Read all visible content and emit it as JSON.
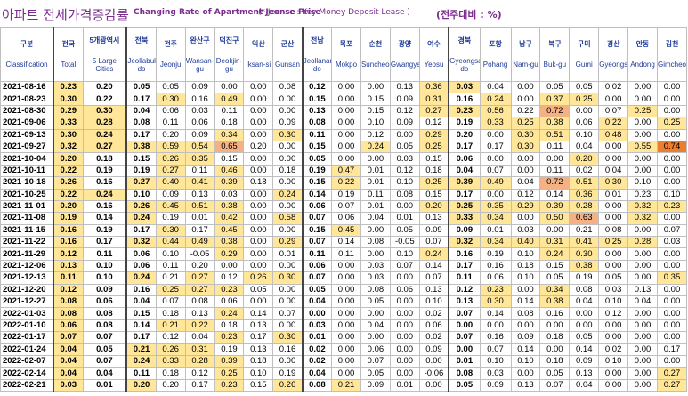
{
  "title": {
    "korean": "아파트 전세가격증감률",
    "english": "Changing Rate of Apartment Jeonse Price",
    "note": "(* Jeonse : Key Money Deposit Lease )",
    "ratio": "(전주대비 : %)"
  },
  "columns": [
    {
      "ko": "구분",
      "en": "Classification"
    },
    {
      "ko": "전국",
      "en": "Total"
    },
    {
      "ko": "5개광역시",
      "en": "5 Large Cities"
    },
    {
      "ko": "전북",
      "en": "Jeollabuk-do"
    },
    {
      "ko": "전주",
      "en": "Jeonju"
    },
    {
      "ko": "완산구",
      "en": "Wansan-gu"
    },
    {
      "ko": "덕진구",
      "en": "Deokjin-gu"
    },
    {
      "ko": "익산",
      "en": "Iksan-si"
    },
    {
      "ko": "군산",
      "en": "Gunsan"
    },
    {
      "ko": "전남",
      "en": "Jeollanam-do"
    },
    {
      "ko": "목포",
      "en": "Mokpo"
    },
    {
      "ko": "순천",
      "en": "Suncheon"
    },
    {
      "ko": "광양",
      "en": "Gwangyang"
    },
    {
      "ko": "여수",
      "en": "Yeosu"
    },
    {
      "ko": "경북",
      "en": "Gyeongsangbuk-do"
    },
    {
      "ko": "포항",
      "en": "Pohang"
    },
    {
      "ko": "남구",
      "en": "Nam-gu"
    },
    {
      "ko": "북구",
      "en": "Buk-gu"
    },
    {
      "ko": "구미",
      "en": "Gumi"
    },
    {
      "ko": "경산",
      "en": "Gyeongsan"
    },
    {
      "ko": "안동",
      "en": "Andong"
    },
    {
      "ko": "김천",
      "en": "Gimcheon"
    }
  ],
  "rows": [
    {
      "date": "2021-08-16",
      "v": [
        "0.23",
        "0.20",
        "0.05",
        "0.05",
        "0.09",
        "0.00",
        "0.00",
        "0.08",
        "0.12",
        "0.00",
        "0.00",
        "0.13",
        "0.36",
        "0.03",
        "0.04",
        "0.00",
        "0.05",
        "0.05",
        "0.02",
        "0.00",
        "0.00"
      ],
      "h": [
        1,
        0,
        0,
        0,
        0,
        0,
        0,
        0,
        0,
        0,
        0,
        0,
        1,
        1,
        0,
        0,
        0,
        0,
        0,
        0,
        0
      ]
    },
    {
      "date": "2021-08-23",
      "v": [
        "0.30",
        "0.22",
        "0.17",
        "0.30",
        "0.16",
        "0.49",
        "0.00",
        "0.00",
        "0.15",
        "0.00",
        "0.15",
        "0.09",
        "0.31",
        "0.16",
        "0.24",
        "0.00",
        "0.37",
        "0.25",
        "0.00",
        "0.00",
        "0.00"
      ],
      "h": [
        1,
        0,
        0,
        1,
        0,
        1,
        0,
        0,
        0,
        0,
        0,
        0,
        1,
        0,
        1,
        0,
        1,
        1,
        0,
        0,
        0
      ]
    },
    {
      "date": "2021-08-30",
      "v": [
        "0.29",
        "0.30",
        "0.04",
        "0.06",
        "0.03",
        "0.11",
        "0.00",
        "0.00",
        "0.13",
        "0.00",
        "0.15",
        "0.12",
        "0.27",
        "0.23",
        "0.56",
        "0.22",
        "0.72",
        "0.00",
        "0.07",
        "0.25",
        "0.00"
      ],
      "h": [
        1,
        1,
        0,
        0,
        0,
        0,
        0,
        0,
        0,
        0,
        0,
        0,
        1,
        1,
        1,
        0,
        2,
        0,
        0,
        1,
        0
      ]
    },
    {
      "date": "2021-09-06",
      "v": [
        "0.33",
        "0.28",
        "0.08",
        "0.11",
        "0.06",
        "0.18",
        "0.00",
        "0.09",
        "0.08",
        "0.00",
        "0.10",
        "0.09",
        "0.12",
        "0.19",
        "0.33",
        "0.25",
        "0.38",
        "0.06",
        "0.22",
        "0.00",
        "0.25"
      ],
      "h": [
        1,
        1,
        0,
        0,
        0,
        0,
        0,
        0,
        0,
        0,
        0,
        0,
        0,
        0,
        1,
        1,
        1,
        0,
        1,
        0,
        1
      ]
    },
    {
      "date": "2021-09-13",
      "v": [
        "0.30",
        "0.24",
        "0.17",
        "0.20",
        "0.09",
        "0.34",
        "0.00",
        "0.30",
        "0.11",
        "0.00",
        "0.12",
        "0.00",
        "0.29",
        "0.20",
        "0.00",
        "0.30",
        "0.51",
        "0.10",
        "0.48",
        "0.00",
        "0.00"
      ],
      "h": [
        1,
        1,
        0,
        0,
        0,
        1,
        0,
        1,
        0,
        0,
        0,
        0,
        1,
        0,
        0,
        1,
        1,
        0,
        1,
        0,
        0
      ]
    },
    {
      "date": "2021-09-27",
      "v": [
        "0.32",
        "0.27",
        "0.38",
        "0.59",
        "0.54",
        "0.65",
        "0.20",
        "0.00",
        "0.15",
        "0.00",
        "0.24",
        "0.05",
        "0.25",
        "0.17",
        "0.17",
        "0.30",
        "0.11",
        "0.04",
        "0.00",
        "0.55",
        "0.74"
      ],
      "h": [
        1,
        1,
        1,
        1,
        1,
        2,
        0,
        0,
        0,
        0,
        1,
        0,
        1,
        0,
        0,
        1,
        0,
        0,
        0,
        1,
        3
      ]
    },
    {
      "date": "2021-10-04",
      "v": [
        "0.20",
        "0.18",
        "0.15",
        "0.26",
        "0.35",
        "0.15",
        "0.00",
        "0.00",
        "0.05",
        "0.00",
        "0.00",
        "0.03",
        "0.15",
        "0.06",
        "0.00",
        "0.00",
        "0.00",
        "0.20",
        "0.00",
        "0.00",
        "0.00"
      ],
      "h": [
        1,
        0,
        0,
        1,
        1,
        0,
        0,
        0,
        0,
        0,
        0,
        0,
        0,
        0,
        0,
        0,
        0,
        1,
        0,
        0,
        0
      ]
    },
    {
      "date": "2021-10-11",
      "v": [
        "0.22",
        "0.19",
        "0.19",
        "0.27",
        "0.11",
        "0.46",
        "0.00",
        "0.18",
        "0.19",
        "0.47",
        "0.01",
        "0.12",
        "0.18",
        "0.04",
        "0.07",
        "0.00",
        "0.11",
        "0.02",
        "0.04",
        "0.00",
        "0.00"
      ],
      "h": [
        1,
        0,
        0,
        1,
        0,
        1,
        0,
        0,
        0,
        1,
        0,
        0,
        0,
        0,
        0,
        0,
        0,
        0,
        0,
        0,
        0
      ]
    },
    {
      "date": "2021-10-18",
      "v": [
        "0.26",
        "0.16",
        "0.27",
        "0.40",
        "0.41",
        "0.39",
        "0.18",
        "0.00",
        "0.15",
        "0.22",
        "0.01",
        "0.10",
        "0.25",
        "0.39",
        "0.49",
        "0.04",
        "0.72",
        "0.51",
        "0.30",
        "0.10",
        "0.00"
      ],
      "h": [
        1,
        0,
        1,
        1,
        1,
        1,
        0,
        0,
        0,
        1,
        0,
        0,
        1,
        1,
        1,
        0,
        2,
        1,
        1,
        0,
        0
      ]
    },
    {
      "date": "2021-10-25",
      "v": [
        "0.22",
        "0.24",
        "0.10",
        "0.09",
        "0.13",
        "0.03",
        "0.00",
        "0.24",
        "0.14",
        "0.19",
        "0.11",
        "0.08",
        "0.15",
        "0.17",
        "0.00",
        "0.12",
        "0.14",
        "0.36",
        "0.01",
        "0.23",
        "0.10"
      ],
      "h": [
        1,
        1,
        0,
        0,
        0,
        0,
        0,
        1,
        0,
        0,
        0,
        0,
        0,
        0,
        0,
        0,
        0,
        1,
        0,
        0,
        0
      ]
    },
    {
      "date": "2021-11-01",
      "v": [
        "0.20",
        "0.16",
        "0.26",
        "0.45",
        "0.51",
        "0.38",
        "0.00",
        "0.00",
        "0.06",
        "0.07",
        "0.01",
        "0.00",
        "0.20",
        "0.25",
        "0.35",
        "0.29",
        "0.39",
        "0.28",
        "0.00",
        "0.32",
        "0.23"
      ],
      "h": [
        1,
        0,
        1,
        1,
        1,
        1,
        0,
        0,
        0,
        0,
        0,
        0,
        1,
        1,
        1,
        1,
        1,
        1,
        0,
        1,
        1
      ]
    },
    {
      "date": "2021-11-08",
      "v": [
        "0.19",
        "0.14",
        "0.24",
        "0.19",
        "0.01",
        "0.42",
        "0.00",
        "0.58",
        "0.07",
        "0.06",
        "0.04",
        "0.01",
        "0.13",
        "0.33",
        "0.34",
        "0.00",
        "0.50",
        "0.63",
        "0.00",
        "0.32",
        "0.00"
      ],
      "h": [
        1,
        0,
        1,
        0,
        0,
        1,
        0,
        1,
        0,
        0,
        0,
        0,
        0,
        1,
        1,
        0,
        1,
        2,
        0,
        1,
        0
      ]
    },
    {
      "date": "2021-11-15",
      "v": [
        "0.16",
        "0.19",
        "0.17",
        "0.30",
        "0.17",
        "0.45",
        "0.00",
        "0.00",
        "0.15",
        "0.45",
        "0.00",
        "0.05",
        "0.09",
        "0.09",
        "0.01",
        "0.03",
        "0.00",
        "0.21",
        "0.08",
        "0.00",
        "0.07"
      ],
      "h": [
        1,
        0,
        0,
        1,
        0,
        1,
        0,
        0,
        0,
        1,
        0,
        0,
        0,
        0,
        0,
        0,
        0,
        0,
        0,
        0,
        0
      ]
    },
    {
      "date": "2021-11-22",
      "v": [
        "0.16",
        "0.17",
        "0.32",
        "0.44",
        "0.49",
        "0.38",
        "0.00",
        "0.29",
        "0.07",
        "0.14",
        "0.08",
        "-0.05",
        "0.07",
        "0.32",
        "0.34",
        "0.40",
        "0.31",
        "0.41",
        "0.25",
        "0.28",
        "0.03"
      ],
      "h": [
        1,
        0,
        1,
        1,
        1,
        1,
        0,
        1,
        0,
        0,
        0,
        0,
        0,
        1,
        1,
        1,
        1,
        1,
        1,
        1,
        0
      ]
    },
    {
      "date": "2021-11-29",
      "v": [
        "0.12",
        "0.11",
        "0.06",
        "0.10",
        "-0.05",
        "0.29",
        "0.00",
        "0.01",
        "0.11",
        "0.11",
        "0.00",
        "0.10",
        "0.24",
        "0.16",
        "0.19",
        "0.10",
        "0.24",
        "0.30",
        "0.00",
        "0.00",
        "0.00"
      ],
      "h": [
        1,
        0,
        0,
        0,
        0,
        1,
        0,
        0,
        0,
        0,
        0,
        0,
        1,
        0,
        0,
        0,
        1,
        1,
        0,
        0,
        0
      ]
    },
    {
      "date": "2021-12-06",
      "v": [
        "0.13",
        "0.10",
        "0.06",
        "0.11",
        "0.20",
        "0.00",
        "0.00",
        "0.00",
        "0.06",
        "0.00",
        "0.03",
        "0.07",
        "0.14",
        "0.17",
        "0.16",
        "0.18",
        "0.15",
        "0.38",
        "0.00",
        "0.00",
        "0.00"
      ],
      "h": [
        1,
        0,
        0,
        0,
        0,
        0,
        0,
        0,
        0,
        0,
        0,
        0,
        0,
        0,
        0,
        0,
        0,
        1,
        0,
        0,
        0
      ]
    },
    {
      "date": "2021-12-13",
      "v": [
        "0.11",
        "0.10",
        "0.24",
        "0.21",
        "0.27",
        "0.12",
        "0.26",
        "0.30",
        "0.07",
        "0.00",
        "0.03",
        "0.00",
        "0.07",
        "0.11",
        "0.06",
        "0.10",
        "0.05",
        "0.19",
        "0.05",
        "0.00",
        "0.35"
      ],
      "h": [
        1,
        0,
        1,
        0,
        1,
        0,
        1,
        1,
        0,
        0,
        0,
        0,
        0,
        0,
        0,
        0,
        0,
        0,
        0,
        0,
        1
      ]
    },
    {
      "date": "2021-12-20",
      "v": [
        "0.12",
        "0.09",
        "0.16",
        "0.25",
        "0.27",
        "0.23",
        "0.05",
        "0.00",
        "0.05",
        "0.00",
        "0.08",
        "0.06",
        "0.13",
        "0.12",
        "0.23",
        "0.00",
        "0.34",
        "0.08",
        "0.03",
        "0.13",
        "0.00"
      ],
      "h": [
        1,
        0,
        0,
        1,
        1,
        1,
        0,
        0,
        0,
        0,
        0,
        0,
        0,
        0,
        1,
        0,
        1,
        0,
        0,
        0,
        0
      ]
    },
    {
      "date": "2021-12-27",
      "v": [
        "0.08",
        "0.06",
        "0.04",
        "0.07",
        "0.08",
        "0.06",
        "0.00",
        "0.00",
        "0.04",
        "0.00",
        "0.05",
        "0.00",
        "0.10",
        "0.13",
        "0.30",
        "0.14",
        "0.38",
        "0.04",
        "0.10",
        "0.04",
        "0.00"
      ],
      "h": [
        1,
        0,
        0,
        0,
        0,
        0,
        0,
        0,
        0,
        0,
        0,
        0,
        0,
        0,
        1,
        0,
        1,
        0,
        0,
        0,
        0
      ]
    },
    {
      "date": "2022-01-03",
      "v": [
        "0.08",
        "0.08",
        "0.15",
        "0.18",
        "0.13",
        "0.24",
        "0.14",
        "0.07",
        "0.00",
        "0.00",
        "0.00",
        "0.00",
        "0.02",
        "0.07",
        "0.14",
        "0.08",
        "0.16",
        "0.00",
        "0.12",
        "0.00",
        "0.00"
      ],
      "h": [
        1,
        0,
        0,
        0,
        0,
        1,
        0,
        0,
        0,
        0,
        0,
        0,
        0,
        0,
        0,
        0,
        0,
        0,
        0,
        0,
        0
      ]
    },
    {
      "date": "2022-01-10",
      "v": [
        "0.06",
        "0.08",
        "0.14",
        "0.21",
        "0.22",
        "0.18",
        "0.13",
        "0.00",
        "0.03",
        "0.00",
        "0.04",
        "0.00",
        "0.06",
        "0.00",
        "0.00",
        "0.00",
        "0.00",
        "0.00",
        "0.00",
        "0.00",
        "0.00"
      ],
      "h": [
        1,
        0,
        0,
        1,
        1,
        0,
        0,
        0,
        0,
        0,
        0,
        0,
        0,
        0,
        0,
        0,
        0,
        0,
        0,
        0,
        0
      ]
    },
    {
      "date": "2022-01-17",
      "v": [
        "0.07",
        "0.07",
        "0.17",
        "0.12",
        "0.04",
        "0.23",
        "0.17",
        "0.30",
        "0.01",
        "0.00",
        "0.00",
        "0.00",
        "0.02",
        "0.07",
        "0.16",
        "0.09",
        "0.18",
        "0.05",
        "0.00",
        "0.00",
        "0.00"
      ],
      "h": [
        1,
        0,
        0,
        0,
        0,
        1,
        0,
        1,
        0,
        0,
        0,
        0,
        0,
        0,
        0,
        0,
        0,
        0,
        0,
        0,
        0
      ]
    },
    {
      "date": "2022-01-24",
      "v": [
        "0.04",
        "0.05",
        "0.21",
        "0.26",
        "0.31",
        "0.19",
        "0.13",
        "0.16",
        "0.02",
        "0.00",
        "0.06",
        "0.00",
        "0.09",
        "0.00",
        "0.07",
        "0.14",
        "0.00",
        "0.14",
        "0.02",
        "0.00",
        "0.17"
      ],
      "h": [
        1,
        0,
        1,
        1,
        1,
        0,
        0,
        0,
        0,
        0,
        0,
        0,
        0,
        0,
        0,
        0,
        0,
        0,
        0,
        0,
        0
      ]
    },
    {
      "date": "2022-02-07",
      "v": [
        "0.04",
        "0.07",
        "0.24",
        "0.33",
        "0.28",
        "0.39",
        "0.18",
        "0.00",
        "0.02",
        "0.00",
        "0.07",
        "0.00",
        "0.00",
        "0.01",
        "0.10",
        "0.10",
        "0.18",
        "0.09",
        "0.10",
        "0.00",
        "0.00"
      ],
      "h": [
        1,
        0,
        1,
        1,
        1,
        1,
        0,
        0,
        0,
        0,
        0,
        0,
        0,
        0,
        0,
        0,
        0,
        0,
        0,
        0,
        0
      ]
    },
    {
      "date": "2022-02-14",
      "v": [
        "0.04",
        "0.04",
        "0.11",
        "0.18",
        "0.12",
        "0.25",
        "0.10",
        "0.19",
        "0.04",
        "0.00",
        "0.05",
        "0.00",
        "-0.06",
        "0.08",
        "0.03",
        "0.00",
        "0.05",
        "0.13",
        "0.00",
        "0.00",
        "0.27"
      ],
      "h": [
        1,
        0,
        0,
        0,
        0,
        1,
        0,
        0,
        0,
        0,
        0,
        0,
        0,
        0,
        0,
        0,
        0,
        0,
        0,
        0,
        1
      ]
    },
    {
      "date": "2022-02-21",
      "v": [
        "0.03",
        "0.01",
        "0.20",
        "0.20",
        "0.17",
        "0.23",
        "0.15",
        "0.26",
        "0.08",
        "0.21",
        "0.09",
        "0.01",
        "0.00",
        "0.05",
        "0.09",
        "0.13",
        "0.07",
        "0.04",
        "0.00",
        "0.00",
        "0.27"
      ],
      "h": [
        1,
        0,
        1,
        0,
        0,
        1,
        0,
        1,
        0,
        1,
        0,
        0,
        0,
        0,
        0,
        0,
        0,
        0,
        0,
        0,
        1
      ]
    }
  ],
  "colors": {
    "yellow": "#ffe699",
    "peach": "#f4b183",
    "orange": "#ed7d31",
    "header_text": "#1f3b99",
    "title_text": "#7b2c8f"
  }
}
